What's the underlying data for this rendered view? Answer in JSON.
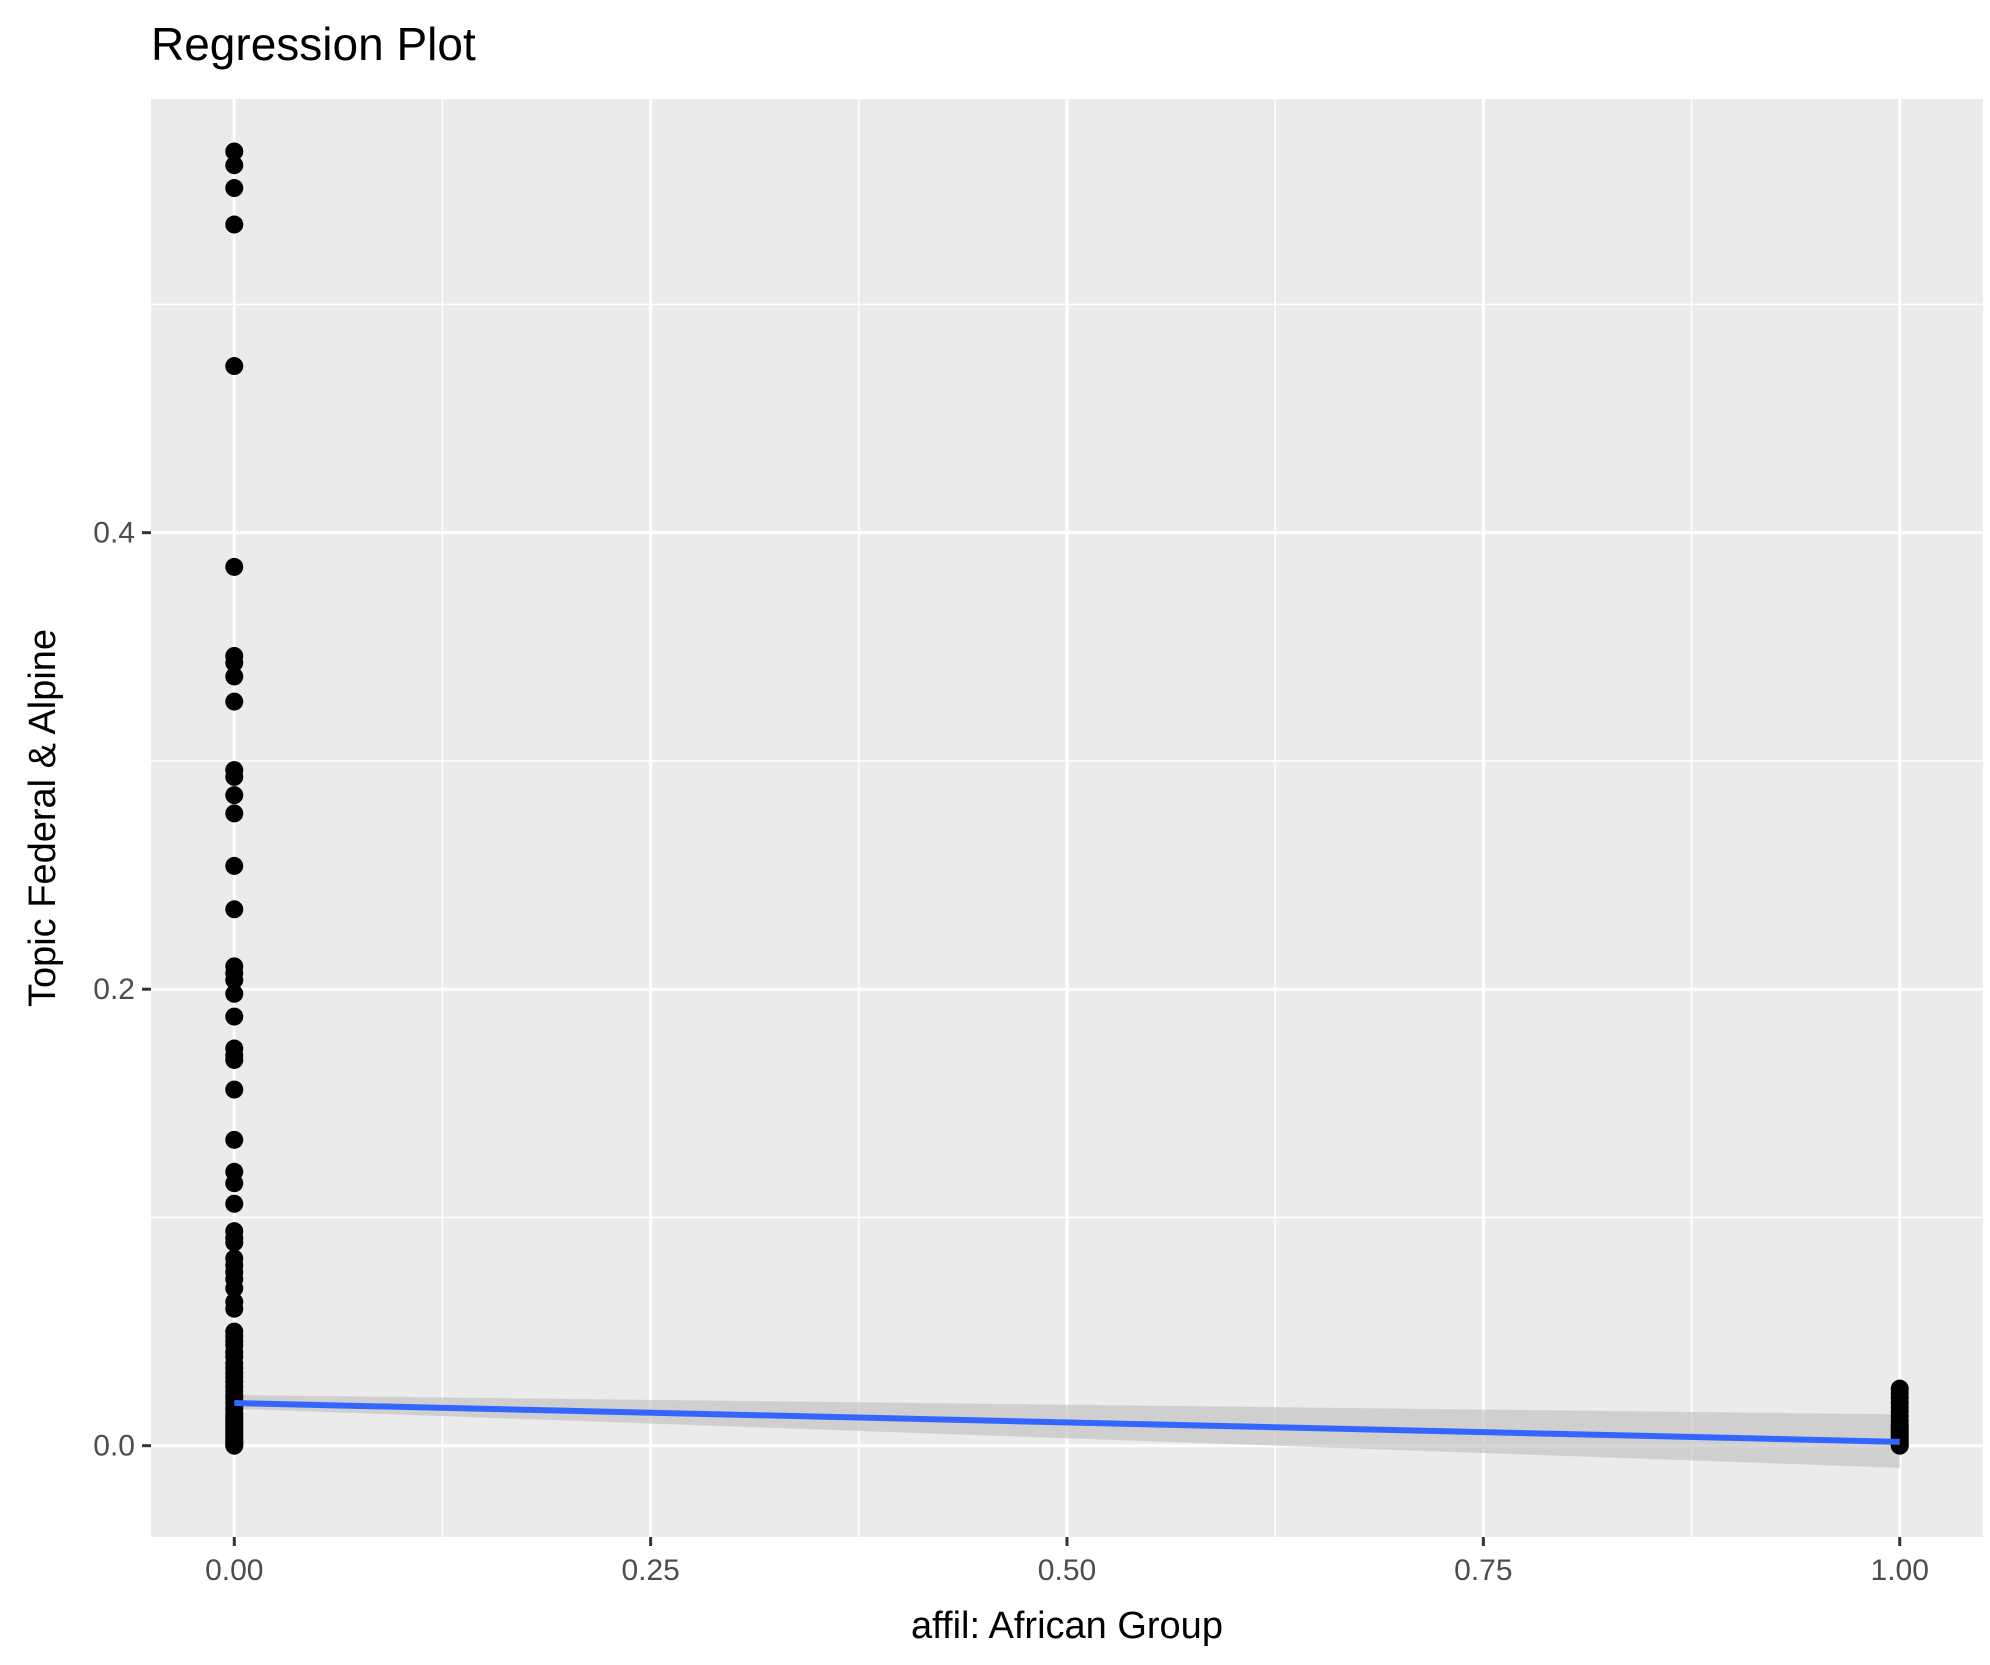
{
  "chart_data": {
    "type": "scatter",
    "title": "Regression Plot",
    "xlabel": "affil: African Group",
    "ylabel": "Topic Federal & Alpine",
    "xlim": [
      -0.05,
      1.05
    ],
    "ylim": [
      -0.04,
      0.59
    ],
    "x_ticks": [
      {
        "value": 0,
        "label": "0.00"
      },
      {
        "value": 0.25,
        "label": "0.25"
      },
      {
        "value": 0.5,
        "label": "0.50"
      },
      {
        "value": 0.75,
        "label": "0.75"
      },
      {
        "value": 1,
        "label": "1.00"
      }
    ],
    "y_ticks": [
      {
        "value": 0,
        "label": "0.0"
      },
      {
        "value": 0.2,
        "label": "0.2"
      },
      {
        "value": 0.4,
        "label": "0.4"
      }
    ],
    "grid": true,
    "legend": "none",
    "colors": {
      "panel": "#ebebeb",
      "grid": "#ffffff",
      "points": "#000000",
      "line": "#3366ff",
      "ribbon": "#bdbdbd"
    },
    "series": [
      {
        "kind": "points",
        "x": [
          0,
          0,
          0,
          0,
          0,
          0,
          0,
          0,
          0,
          0,
          0,
          0,
          0,
          0,
          0,
          0,
          0,
          0,
          0,
          0,
          0,
          0,
          0,
          0,
          0,
          0,
          0,
          0,
          0,
          0,
          0,
          0,
          0,
          0,
          0,
          0,
          0,
          0,
          0,
          0,
          0,
          0,
          0,
          0,
          0,
          0,
          0,
          0,
          0,
          0,
          0,
          0,
          0,
          0,
          0,
          0,
          0,
          0,
          0,
          0,
          0,
          0,
          0,
          0,
          0,
          0,
          0,
          0,
          0,
          0,
          0,
          0,
          0,
          0,
          1,
          1,
          1,
          1,
          1,
          1,
          1,
          1,
          1,
          1,
          1,
          1,
          1,
          1,
          1,
          1,
          1,
          1,
          1
        ],
        "y": [
          0.567,
          0.561,
          0.551,
          0.535,
          0.473,
          0.385,
          0.346,
          0.343,
          0.337,
          0.326,
          0.296,
          0.293,
          0.285,
          0.277,
          0.254,
          0.235,
          0.21,
          0.207,
          0.204,
          0.198,
          0.188,
          0.174,
          0.171,
          0.169,
          0.156,
          0.134,
          0.12,
          0.115,
          0.106,
          0.094,
          0.091,
          0.089,
          0.082,
          0.079,
          0.076,
          0.073,
          0.069,
          0.063,
          0.06,
          0.05,
          0.048,
          0.046,
          0.044,
          0.041,
          0.039,
          0.036,
          0.034,
          0.032,
          0.03,
          0.028,
          0.026,
          0.024,
          0.022,
          0.021,
          0.019,
          0.017,
          0.016,
          0.014,
          0.013,
          0.012,
          0.011,
          0.01,
          0.009,
          0.008,
          0.007,
          0.006,
          0.005,
          0.004,
          0.003,
          0.002,
          0.0015,
          0.001,
          0.0005,
          0.0,
          0.025,
          0.023,
          0.021,
          0.019,
          0.017,
          0.015,
          0.013,
          0.011,
          0.009,
          0.008,
          0.007,
          0.006,
          0.005,
          0.004,
          0.003,
          0.002,
          0.001,
          0.0005,
          0.0
        ]
      },
      {
        "kind": "regression",
        "x": [
          0,
          1
        ],
        "y": [
          0.0187,
          0.0017
        ],
        "ci_lower": [
          0.0162,
          -0.0097
        ],
        "ci_upper": [
          0.0222,
          0.0137
        ]
      }
    ]
  }
}
